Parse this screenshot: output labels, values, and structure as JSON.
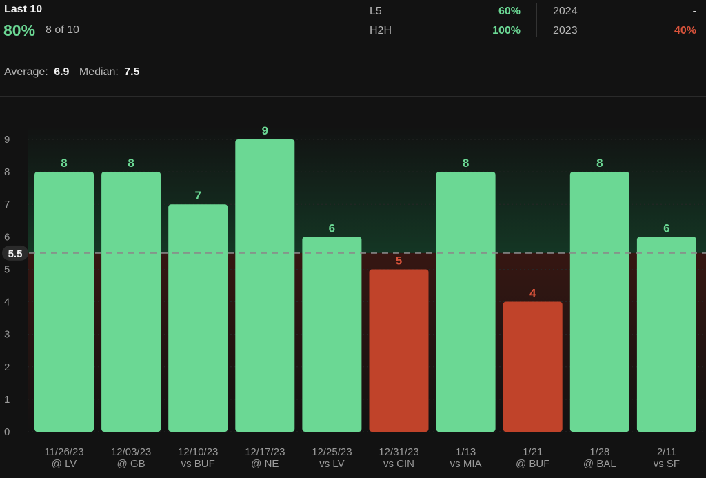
{
  "header": {
    "title": "Last 10",
    "hit_pct": "80%",
    "hit_count": "8 of 10"
  },
  "stats": [
    {
      "label": "L5",
      "value": "60%",
      "color": "#6bd894"
    },
    {
      "label": "H2H",
      "value": "100%",
      "color": "#6bd894"
    },
    {
      "label": "2024",
      "value": "-",
      "color": "#f2f2f2"
    },
    {
      "label": "2023",
      "value": "40%",
      "color": "#d9533b"
    }
  ],
  "summary": {
    "average_label": "Average:",
    "average_value": "6.9",
    "median_label": "Median:",
    "median_value": "7.5"
  },
  "colors": {
    "over": "#6bd894",
    "under": "#c0432a",
    "under_label": "#d9533b",
    "line": "#8a8a8a"
  },
  "chart_data": {
    "type": "bar",
    "line_value": 5.5,
    "line_label": "5.5",
    "ylim": [
      0,
      9
    ],
    "yticks": [
      0,
      1,
      2,
      3,
      4,
      5,
      6,
      7,
      8,
      9
    ],
    "games": [
      {
        "date": "11/26/23",
        "opp": "@ LV",
        "value": 8
      },
      {
        "date": "12/03/23",
        "opp": "@ GB",
        "value": 8
      },
      {
        "date": "12/10/23",
        "opp": "vs BUF",
        "value": 7
      },
      {
        "date": "12/17/23",
        "opp": "@ NE",
        "value": 9
      },
      {
        "date": "12/25/23",
        "opp": "vs LV",
        "value": 6
      },
      {
        "date": "12/31/23",
        "opp": "vs CIN",
        "value": 5
      },
      {
        "date": "1/13",
        "opp": "vs MIA",
        "value": 8
      },
      {
        "date": "1/21",
        "opp": "@ BUF",
        "value": 4
      },
      {
        "date": "1/28",
        "opp": "@ BAL",
        "value": 8
      },
      {
        "date": "2/11",
        "opp": "vs SF",
        "value": 6
      }
    ]
  }
}
